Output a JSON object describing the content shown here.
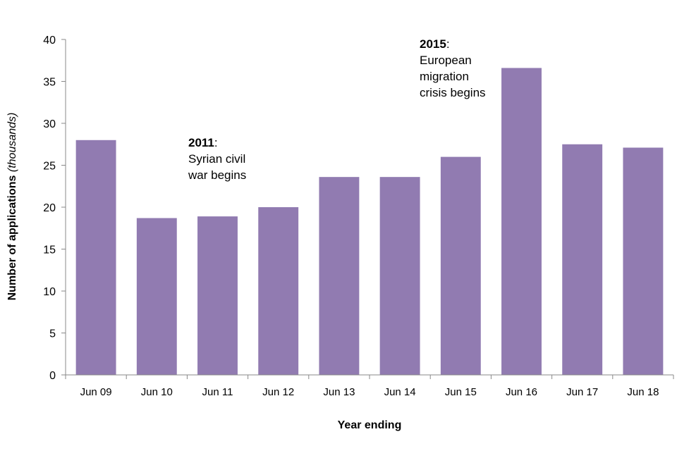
{
  "chart_data": {
    "type": "bar",
    "categories": [
      "Jun 09",
      "Jun 10",
      "Jun 11",
      "Jun 12",
      "Jun 13",
      "Jun 14",
      "Jun 15",
      "Jun 16",
      "Jun 17",
      "Jun 18"
    ],
    "values": [
      28.0,
      18.7,
      18.9,
      20.0,
      23.6,
      23.6,
      26.0,
      36.6,
      27.5,
      27.1
    ],
    "xlabel": "Year ending",
    "ylabel_main": "Number of applications ",
    "ylabel_italic": "(thousands)",
    "ylim": [
      0,
      40
    ],
    "yticks": [
      0,
      5,
      10,
      15,
      20,
      25,
      30,
      35,
      40
    ],
    "grid": false,
    "bar_color": "#917bb1",
    "annotations": [
      {
        "category": "Jun 11",
        "year": "2011",
        "lines": [
          ":",
          "Syrian civil",
          "war begins"
        ]
      },
      {
        "category": "Jun 15",
        "year": "2015",
        "lines": [
          ":",
          "European",
          "migration",
          "crisis begins"
        ]
      }
    ]
  }
}
